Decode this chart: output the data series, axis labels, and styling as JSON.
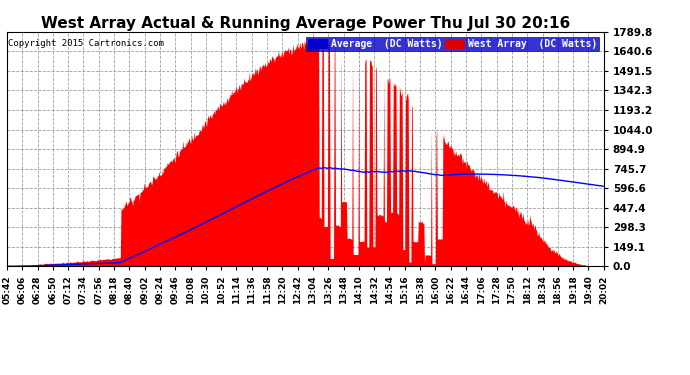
{
  "title": "West Array Actual & Running Average Power Thu Jul 30 20:16",
  "copyright": "Copyright 2015 Cartronics.com",
  "ylabel_right_values": [
    1789.8,
    1640.6,
    1491.5,
    1342.3,
    1193.2,
    1044.0,
    894.9,
    745.7,
    596.6,
    447.4,
    298.3,
    149.1,
    0.0
  ],
  "ymax": 1789.8,
  "ymin": 0.0,
  "bg_color": "#ffffff",
  "plot_bg_color": "#ffffff",
  "grid_color": "#888888",
  "bar_color": "#ff0000",
  "avg_color": "#0000ff",
  "title_color": "#000000",
  "copyright_color": "#000000",
  "legend_avg_bg": "#0000cc",
  "legend_west_bg": "#dd0000",
  "x_labels": [
    "05:42",
    "06:06",
    "06:28",
    "06:50",
    "07:12",
    "07:34",
    "07:56",
    "08:18",
    "08:40",
    "09:02",
    "09:24",
    "09:46",
    "10:08",
    "10:30",
    "10:52",
    "11:14",
    "11:36",
    "11:58",
    "12:20",
    "12:42",
    "13:04",
    "13:26",
    "13:48",
    "14:10",
    "14:32",
    "14:54",
    "15:16",
    "15:38",
    "16:00",
    "16:22",
    "16:44",
    "17:06",
    "17:28",
    "17:50",
    "18:12",
    "18:34",
    "18:56",
    "19:18",
    "19:40",
    "20:02"
  ]
}
